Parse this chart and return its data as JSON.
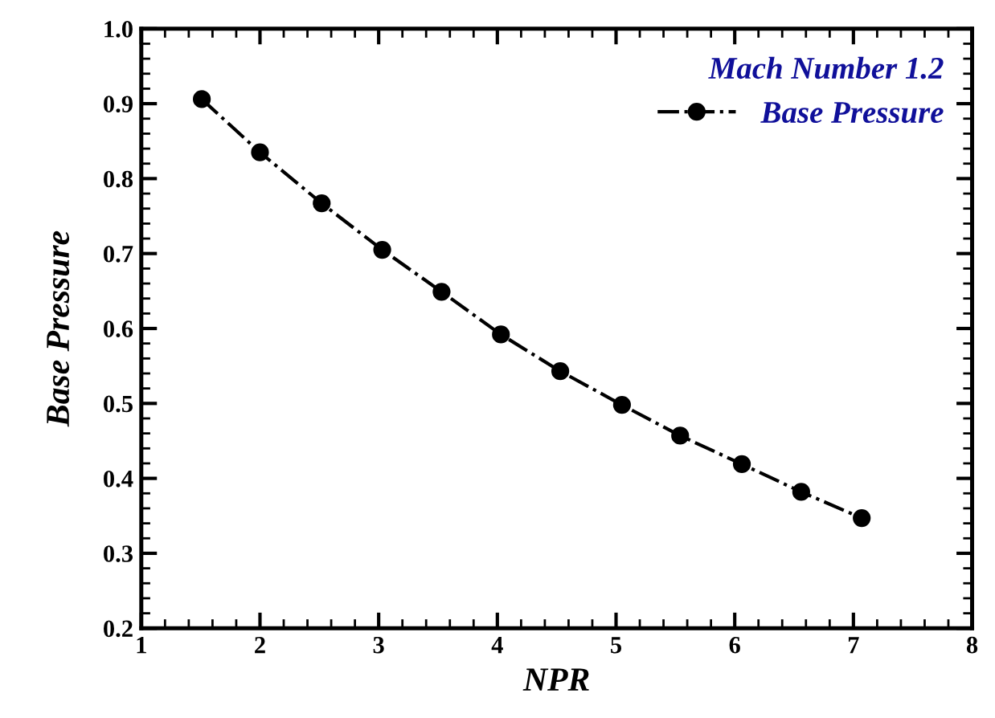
{
  "chart_data": {
    "type": "line",
    "xlabel": "NPR",
    "ylabel": "Base Pressure",
    "legend_title": "Mach Number 1.2",
    "x": [
      1.51,
      2.0,
      2.52,
      3.03,
      3.53,
      4.03,
      4.53,
      5.05,
      5.54,
      6.06,
      6.56,
      7.07
    ],
    "series": [
      {
        "name": "Base Pressure",
        "color": "#000000",
        "values": [
          0.906,
          0.835,
          0.767,
          0.705,
          0.649,
          0.592,
          0.543,
          0.498,
          0.457,
          0.419,
          0.382,
          0.347
        ]
      }
    ],
    "xlim": [
      1,
      8
    ],
    "xticks": [
      1,
      2,
      3,
      4,
      5,
      6,
      7,
      8
    ],
    "ylim": [
      0.2,
      1.0
    ],
    "yticks": [
      {
        "value": 0.2,
        "label": "0.2"
      },
      {
        "value": 0.3,
        "label": "0.3"
      },
      {
        "value": 0.4,
        "label": "0.4"
      },
      {
        "value": 0.5,
        "label": "0.5"
      },
      {
        "value": 0.6,
        "label": "0.6"
      },
      {
        "value": 0.7,
        "label": "0.7"
      },
      {
        "value": 0.8,
        "label": "0.8"
      },
      {
        "value": 0.9,
        "label": "0.9"
      },
      {
        "value": 1.0,
        "label": "1.0"
      }
    ],
    "grid": false,
    "legend": "top right",
    "marker": "circle",
    "line_style": "dashdot"
  }
}
